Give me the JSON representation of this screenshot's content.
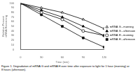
{
  "chart_data": {
    "type": "line",
    "x": [
      0,
      30,
      60,
      90,
      120
    ],
    "series": [
      {
        "name": "mRNA G - morning",
        "color": "black",
        "marker": "triangle-open",
        "values": [
          100,
          90,
          80,
          65,
          45
        ]
      },
      {
        "name": "mRNA G - afternoon",
        "color": "black",
        "marker": "triangle",
        "values": [
          100,
          85,
          70,
          50,
          30
        ]
      },
      {
        "name": "mRNA H - morning",
        "color": "black",
        "marker": "circle-open",
        "values": [
          100,
          80,
          65,
          40,
          30
        ]
      },
      {
        "name": "mRNA H - afternoon",
        "color": "black",
        "marker": "square",
        "values": [
          100,
          75,
          50,
          25,
          5
        ]
      }
    ],
    "xlabel": "Time (min)",
    "ylabel": "Relative Percent\nmRNA Remaining",
    "xlim": [
      0,
      120
    ],
    "ylim": [
      0,
      100
    ],
    "xticks": [
      0,
      30,
      60,
      90,
      120
    ],
    "yticks": [
      0,
      10,
      20,
      30,
      40,
      50,
      60,
      70,
      80,
      90,
      100
    ],
    "grid": false,
    "legend": "right",
    "caption": "Figure 1. Degradation of mRNA G and mRNA H over time after exposure to light for 1 hour (morning) or\n8 hours (afternoon)."
  }
}
